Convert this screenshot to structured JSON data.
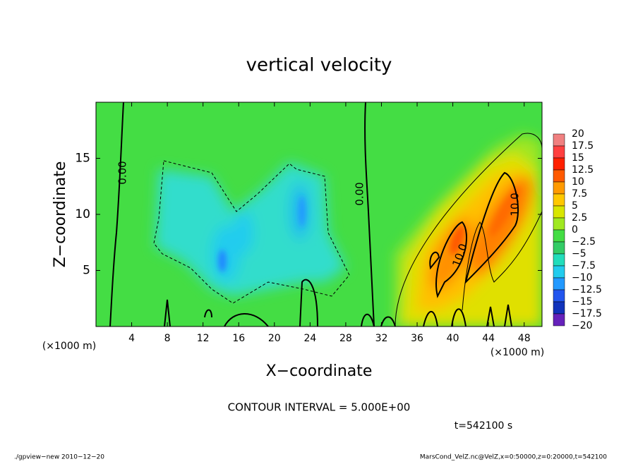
{
  "chart_data": {
    "type": "contour",
    "title": "vertical velocity",
    "x_label": "X−coordinate",
    "y_label": "Z−coordinate",
    "x_unit": "(×1000 m)",
    "y_unit": "(×1000 m)",
    "xlim": [
      0,
      50
    ],
    "xticks": [
      4,
      8,
      12,
      16,
      20,
      24,
      28,
      32,
      36,
      40,
      44,
      48
    ],
    "ylim": [
      0,
      20
    ],
    "yticks": [
      5,
      10,
      15
    ],
    "colorbar": {
      "levels": [
        20,
        17.5,
        15,
        12.5,
        10,
        7.5,
        5,
        2.5,
        0,
        {
          "value": -2.5,
          "label": "−2.5"
        },
        {
          "value": -5,
          "label": "−5"
        },
        {
          "value": -7.5,
          "label": "−7.5"
        },
        {
          "value": -10,
          "label": "−10"
        },
        {
          "value": -12.5,
          "label": "−12.5"
        },
        {
          "value": -15,
          "label": "−15"
        },
        {
          "value": -17.5,
          "label": "−17.5"
        },
        {
          "value": -20,
          "label": "−20"
        }
      ],
      "colors": [
        "#f08080",
        "#ff4040",
        "#ff2000",
        "#ff5a00",
        "#ff9a00",
        "#ffc800",
        "#d8e600",
        "#a0e820",
        "#44dd44",
        "#33cc66",
        "#22ddbb",
        "#22ccee",
        "#2299ff",
        "#2255ee",
        "#1133bb",
        "#6622bb"
      ]
    },
    "contour_labels": [
      "0.00",
      "0.00",
      "10.0",
      "10.0"
    ],
    "contour_interval": "CONTOUR INTERVAL = 5.000E+00",
    "time": "t=542100 s",
    "footer_left": "./gpview−new  2010−12−20",
    "footer_right": "MarsCond_VelZ.nc@VelZ,x=0:50000,z=0:20000,t=542100"
  }
}
